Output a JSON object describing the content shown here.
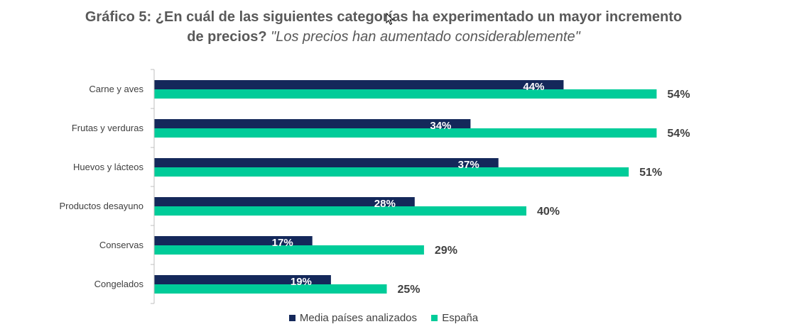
{
  "title": {
    "line1": "Gráfico 5: ¿En cuál de las siguientes categorías ha experimentado un mayor incremento",
    "line2_bold": "de precios?",
    "line2_italic": "\"Los precios han aumentado considerablemente\""
  },
  "colors": {
    "series1": "#14285a",
    "series2": "#00cc99",
    "axis": "#bfbfbf"
  },
  "chart_data": {
    "type": "bar",
    "orientation": "horizontal",
    "categories": [
      "Carne y aves",
      "Frutas y verduras",
      "Huevos y lácteos",
      "Productos desayuno",
      "Conservas",
      "Congelados"
    ],
    "series": [
      {
        "name": "Media países analizados",
        "values": [
          44,
          34,
          37,
          28,
          17,
          19
        ],
        "labels": [
          "44%",
          "34%",
          "37%",
          "28%",
          "17%",
          "19%"
        ]
      },
      {
        "name": "España",
        "values": [
          54,
          54,
          51,
          40,
          29,
          25
        ],
        "labels": [
          "54%",
          "54%",
          "51%",
          "40%",
          "29%",
          "25%"
        ]
      }
    ],
    "xlim": [
      0,
      60
    ],
    "grid": false,
    "legend_position": "bottom"
  }
}
